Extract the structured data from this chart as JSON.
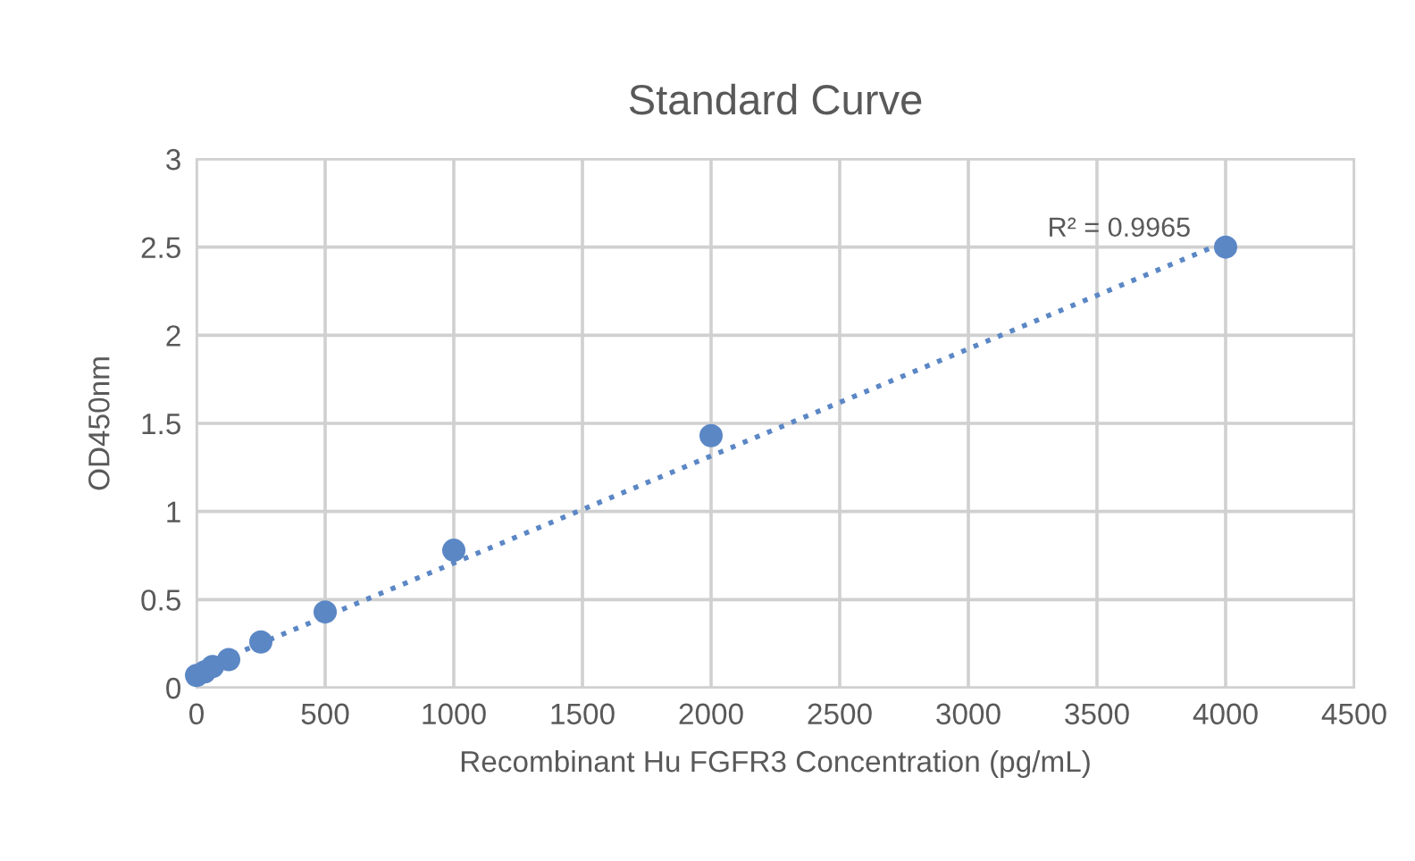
{
  "chart_data": {
    "type": "scatter",
    "title": "Standard Curve",
    "xlabel": "Recombinant Hu FGFR3 Concentration (pg/mL)",
    "ylabel": "OD450nm",
    "series": [
      {
        "color": "#5b87c5",
        "x": [
          0,
          31.25,
          62.5,
          125,
          250,
          500,
          1000,
          2000,
          4000
        ],
        "values": [
          0.07,
          0.09,
          0.12,
          0.16,
          0.26,
          0.43,
          0.78,
          1.43,
          2.5
        ],
        "marker": "circle"
      },
      {
        "type": "line",
        "color": "#5b87c5",
        "x": [
          0,
          4000
        ],
        "values": [
          0.1,
          2.53
        ],
        "line_style": "dotted",
        "marker": "none"
      }
    ],
    "annotations": [
      {
        "text": "R² = 0.9965",
        "x": 4000,
        "y": 2.5
      }
    ],
    "xlim": [
      0,
      4500
    ],
    "xticks": [
      0,
      500,
      1000,
      1500,
      2000,
      2500,
      3000,
      3500,
      4000,
      4500
    ],
    "ylim": [
      0,
      3
    ],
    "yticks": [
      0,
      0.5,
      1,
      1.5,
      2,
      2.5,
      3
    ],
    "grid": true,
    "legend": false
  }
}
